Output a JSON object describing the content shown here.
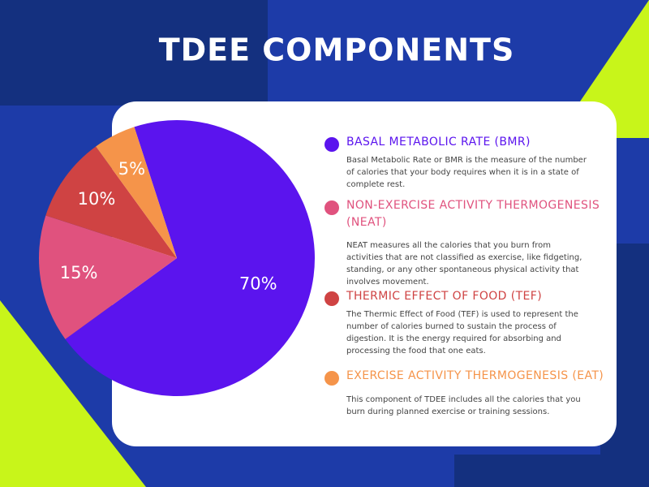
{
  "chart_data": {
    "type": "pie",
    "title": "TDEE COMPONENTS",
    "categories": [
      "BASAL METABOLIC RATE (BMR)",
      "NON-EXERCISE ACTIVITY THERMOGENESIS (NEAT)",
      "THERMIC EFFECT OF FOOD (TEF)",
      "EXERCISE ACTIVITY THERMOGENESIS (EAT)"
    ],
    "values": [
      70,
      15,
      10,
      5
    ],
    "value_labels": [
      "70%",
      "15%",
      "10%",
      "5%"
    ],
    "colors": [
      "#5b14ee",
      "#e0527e",
      "#cf4343",
      "#f5944a"
    ],
    "descriptions": [
      "Basal Metabolic Rate or BMR is the measure of the number of calories that your body requires when it is in a state of complete rest.",
      "NEAT measures all the calories that you burn from activities that are not classified as exercise, like fidgeting, standing, or any other spontaneous physical activity that involves movement.",
      "The Thermic Effect of Food (TEF) is used to represent the number of calories burned to sustain the process of digestion. It is the energy required for absorbing and processing the food that one eats.",
      "This component of TDEE includes all the calories that you burn during planned exercise or training sessions."
    ]
  }
}
